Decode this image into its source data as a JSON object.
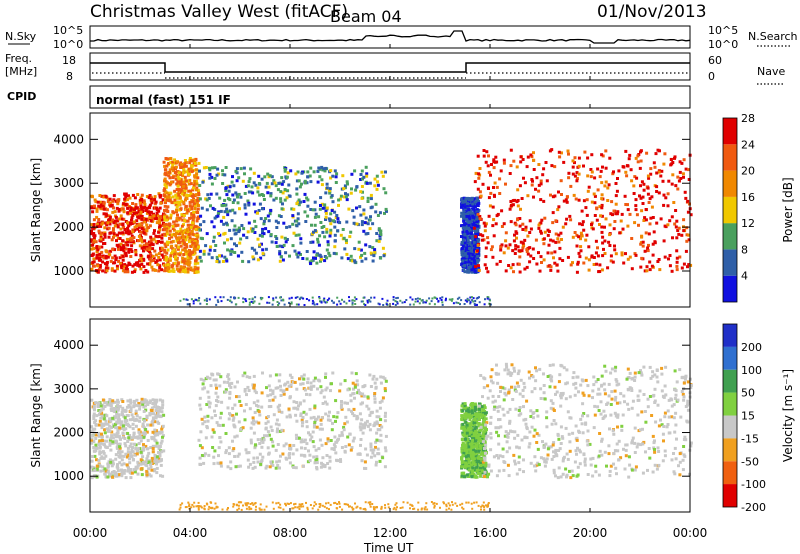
{
  "header": {
    "title": "Christmas Valley West (fitACF)",
    "beam": "Beam 04",
    "date": "01/Nov/2013"
  },
  "top_panels": {
    "nsky": {
      "label": "N.Sky",
      "tick_hi": "10^5",
      "tick_lo": "10^0"
    },
    "nsearch": {
      "label": "N.Search",
      "tick_hi": "10^5",
      "tick_lo": "10^0"
    },
    "freq": {
      "label_line1": "Freq.",
      "label_line2": "[MHz]",
      "tick_hi": "18",
      "tick_lo": "8"
    },
    "nave": {
      "label": "Nave",
      "tick_hi": "60",
      "tick_lo": "0"
    },
    "cpid": {
      "label": "CPID",
      "mode_text": "normal (fast) 151 IF"
    }
  },
  "x_axis": {
    "label": "Time UT",
    "ticks": [
      "00:00",
      "04:00",
      "08:00",
      "12:00",
      "16:00",
      "20:00",
      "00:00"
    ]
  },
  "chart_data": [
    {
      "type": "heatmap",
      "ylabel": "Slant Range [km]",
      "xlabel": "Time UT",
      "x_range_hours": [
        0,
        24
      ],
      "ylim": [
        180,
        4600
      ],
      "y_ticks": [
        1000,
        2000,
        3000,
        4000
      ],
      "colorbar": {
        "label": "Power [dB]",
        "ticks": [
          4,
          8,
          12,
          16,
          20,
          24,
          28
        ],
        "colors": [
          "#1010e0",
          "#2f5fa8",
          "#4aa05e",
          "#f0c800",
          "#f08800",
          "#f05a10",
          "#e00000"
        ]
      },
      "regions": [
        {
          "t": [
            0.0,
            2.9
          ],
          "r": [
            1000,
            2800
          ],
          "level": "28"
        },
        {
          "t": [
            2.9,
            4.3
          ],
          "r": [
            1000,
            3600
          ],
          "level": "24"
        },
        {
          "t": [
            4.3,
            11.8
          ],
          "r": [
            1200,
            3400
          ],
          "level": "12"
        },
        {
          "t": [
            14.8,
            15.5
          ],
          "r": [
            1000,
            2700
          ],
          "level": "8"
        },
        {
          "t": [
            15.3,
            24.0
          ],
          "r": [
            1000,
            3800
          ],
          "level": "28"
        }
      ]
    },
    {
      "type": "heatmap",
      "ylabel": "Slant Range [km]",
      "xlabel": "Time UT",
      "x_range_hours": [
        0,
        24
      ],
      "ylim": [
        180,
        4600
      ],
      "y_ticks": [
        1000,
        2000,
        3000,
        4000
      ],
      "colorbar": {
        "label": "Velocity [m s⁻¹]",
        "ticks": [
          200,
          100,
          50,
          15,
          -15,
          -50,
          -100,
          -200
        ],
        "colors": [
          "#2030c8",
          "#3070d0",
          "#40a050",
          "#80d040",
          "#c8c8c8",
          "#f0a020",
          "#f06010",
          "#e00000"
        ]
      },
      "regions": [
        {
          "t": [
            0.0,
            2.9
          ],
          "r": [
            1000,
            2800
          ],
          "level": "-15..15"
        },
        {
          "t": [
            4.3,
            11.8
          ],
          "r": [
            1200,
            3400
          ],
          "level": "-15..15"
        },
        {
          "t": [
            14.8,
            15.8
          ],
          "r": [
            1000,
            2700
          ],
          "level": "50"
        },
        {
          "t": [
            15.5,
            24.0
          ],
          "r": [
            1000,
            3600
          ],
          "level": "-15..15"
        }
      ]
    }
  ]
}
